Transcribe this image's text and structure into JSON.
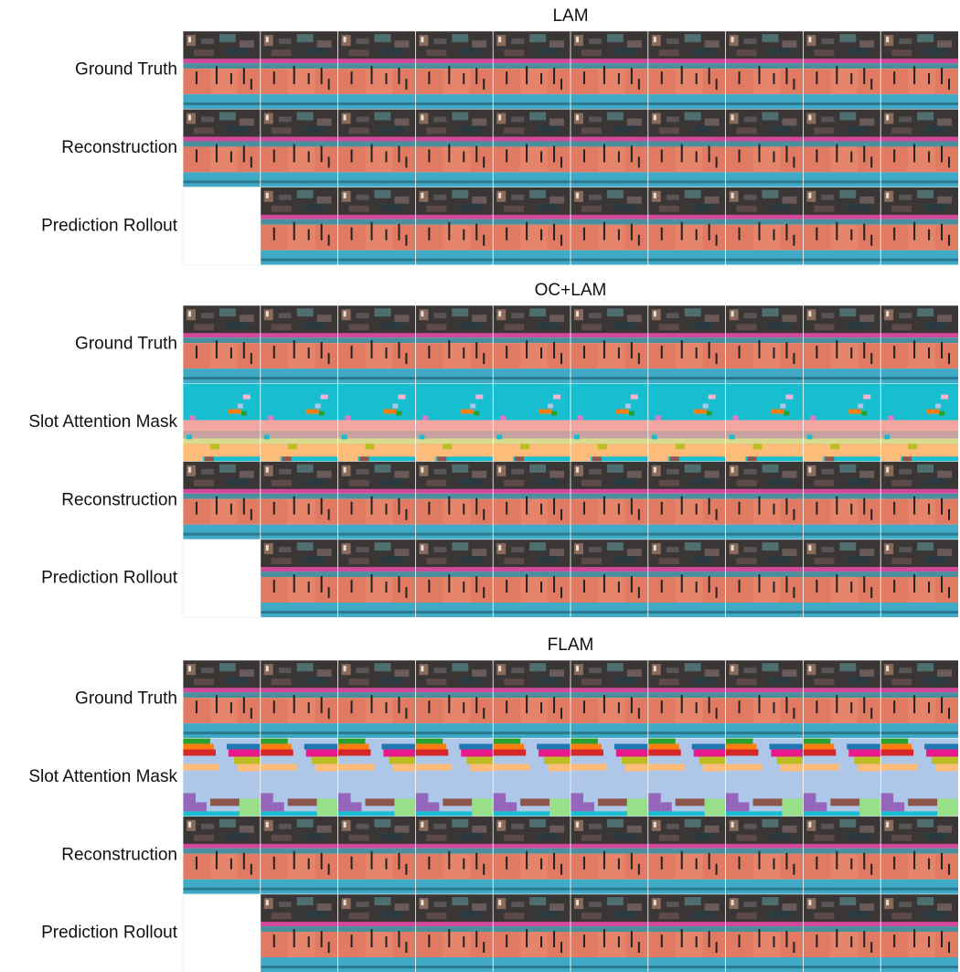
{
  "panels": [
    {
      "title": "LAM",
      "rows": [
        {
          "label": "Ground Truth"
        },
        {
          "label": "Reconstruction"
        },
        {
          "label": "Prediction Rollout"
        }
      ]
    },
    {
      "title": "OC+LAM",
      "rows": [
        {
          "label": "Ground Truth"
        },
        {
          "label": "Slot Attention Mask"
        },
        {
          "label": "Reconstruction"
        },
        {
          "label": "Prediction Rollout"
        }
      ]
    },
    {
      "title": "FLAM",
      "rows": [
        {
          "label": "Ground Truth"
        },
        {
          "label": "Slot Attention Mask"
        },
        {
          "label": "Reconstruction"
        },
        {
          "label": "Prediction Rollout"
        }
      ]
    }
  ]
}
